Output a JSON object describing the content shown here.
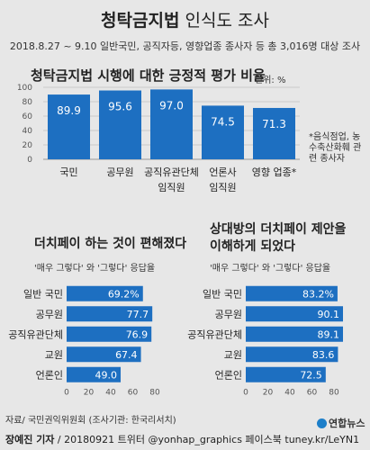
{
  "header": {
    "title_bold": "청탁금지법",
    "title_rest": "인식도 조사",
    "subtitle": "2018.8.27 ~ 9.10 일반국민, 공직자등, 영향업종 종사자 등 총 3,016명 대상 조사"
  },
  "chart_data": [
    {
      "type": "bar",
      "title": "청탁금지법 시행에 대한 긍정적 평가 비율",
      "unit": "단위: %",
      "categories": [
        [
          "국민"
        ],
        [
          "공무원"
        ],
        [
          "공직유관단체",
          "임직원"
        ],
        [
          "언론사",
          "임직원"
        ],
        [
          "영향 업종*"
        ]
      ],
      "values": [
        89.9,
        95.6,
        97.0,
        74.5,
        71.3
      ],
      "ylim": [
        0,
        100
      ],
      "yticks": [
        0,
        20,
        40,
        60,
        80,
        100
      ],
      "grid": true,
      "footnote": "*음식점업, 농수축산화훼 관련 종사자",
      "bar_color": "#1d6fc1"
    },
    {
      "type": "bar",
      "orientation": "horizontal",
      "title": "더치페이 하는 것이 편해졌다",
      "subtitle": "'매우 그렇다' 와 '그렇다' 응답율",
      "categories": [
        "일반 국민",
        "공무원",
        "공직유관단체",
        "교원",
        "언론인"
      ],
      "values": [
        69.2,
        77.7,
        76.9,
        67.4,
        49.0
      ],
      "value_labels": [
        "69.2%",
        "77.7",
        "76.9",
        "67.4",
        "49.0"
      ],
      "xlim": [
        0,
        80
      ],
      "xticks": [
        0,
        20,
        40,
        60,
        80
      ],
      "bar_color": "#1d6fc1"
    },
    {
      "type": "bar",
      "orientation": "horizontal",
      "title": "상대방의 더치페이 제안을 이해하게 되었다",
      "title_lines": [
        "상대방의 더치페이 제안을",
        "이해하게 되었다"
      ],
      "subtitle": "'매우 그렇다' 와 '그렇다' 응답율",
      "categories": [
        "일반 국민",
        "공무원",
        "공직유관단체",
        "교원",
        "언론인"
      ],
      "values": [
        83.2,
        90.1,
        89.1,
        83.6,
        72.5
      ],
      "value_labels": [
        "83.2%",
        "90.1",
        "89.1",
        "83.6",
        "72.5"
      ],
      "xlim": [
        0,
        80
      ],
      "xticks": [
        0,
        20,
        40,
        60,
        80
      ],
      "bar_color": "#1d6fc1"
    }
  ],
  "footer": {
    "source": "자료/ 국민권익위원회 (조사기관: 한국리서치)",
    "reporter": "장예진 기자",
    "credit_rest": " / 20180921 트위터 @yonhap_graphics 페이스북 tuney.kr/LeYN1",
    "logo": "연합뉴스"
  }
}
